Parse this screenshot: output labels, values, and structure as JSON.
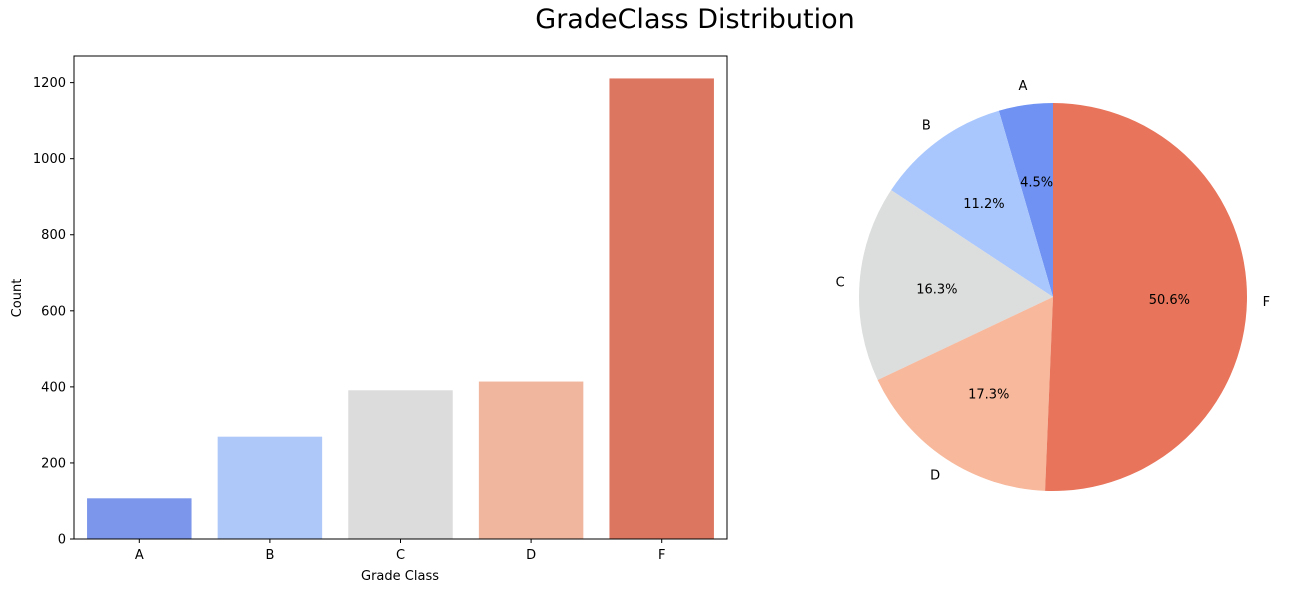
{
  "figure": {
    "title": "GradeClass Distribution"
  },
  "chart_data": [
    {
      "type": "bar",
      "categories": [
        "A",
        "B",
        "C",
        "D",
        "F"
      ],
      "values": [
        107,
        269,
        391,
        414,
        1211
      ],
      "colors": [
        "#7b96ea",
        "#aec8f9",
        "#dcdcdc",
        "#f1b79e",
        "#dd7660"
      ],
      "xlabel": "Grade Class",
      "ylabel": "Count",
      "ylim": [
        0,
        1270
      ],
      "yticks": [
        0,
        200,
        400,
        600,
        800,
        1000,
        1200
      ],
      "grid": false
    },
    {
      "type": "pie",
      "labels": [
        "A",
        "B",
        "C",
        "D",
        "F"
      ],
      "values": [
        4.5,
        11.2,
        16.3,
        17.3,
        50.6
      ],
      "pct_labels": [
        "4.5%",
        "11.2%",
        "16.3%",
        "17.3%",
        "50.6%"
      ],
      "colors": [
        "#6f92f3",
        "#aac7fd",
        "#dcdddd",
        "#f7b89c",
        "#e7745b"
      ],
      "startangle": 90,
      "direction": "counterclockwise"
    }
  ]
}
